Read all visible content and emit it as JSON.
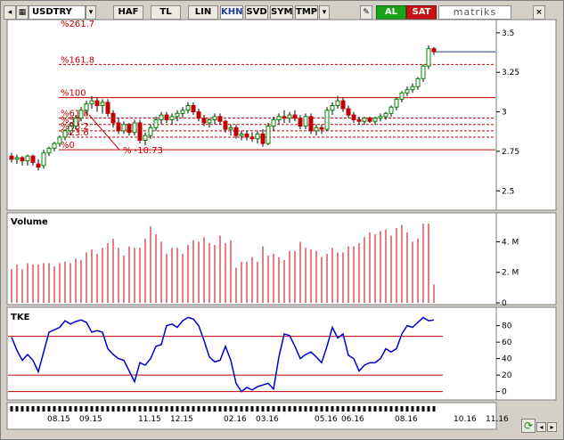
{
  "toolbar": {
    "symbol": "USDTRY",
    "buttons": [
      "HAF",
      "TL",
      "LIN",
      "KHN",
      "SVD",
      "SYM",
      "TMP"
    ],
    "active": "KHN",
    "buy_label": "AL",
    "sell_label": "SAT",
    "brand": "matriks",
    "close_glyph": "×"
  },
  "colors": {
    "up": "#008000",
    "down": "#c00000",
    "fib": "#c00000",
    "tke_line": "#0000cc",
    "tke_level": "#c00000",
    "volume": "#c00000"
  },
  "icons": [
    "back-icon",
    "settings-icon",
    "refresh-icon",
    "scroll-left-icon",
    "scroll-right-icon",
    "edit-icon"
  ],
  "chart_data": {
    "type": "candlestick",
    "price": {
      "ylim": [
        2.4,
        3.55
      ],
      "ticks": [
        2.5,
        2.75,
        3,
        3.25,
        3.5
      ],
      "tick_labels": [
        "2.5",
        "2.75",
        "3",
        "3.25",
        "3.5"
      ],
      "last": 3.38,
      "candles": [
        [
          2.72,
          2.74,
          2.68,
          2.7
        ],
        [
          2.7,
          2.73,
          2.67,
          2.71
        ],
        [
          2.71,
          2.72,
          2.66,
          2.69
        ],
        [
          2.69,
          2.73,
          2.66,
          2.72
        ],
        [
          2.72,
          2.73,
          2.66,
          2.68
        ],
        [
          2.67,
          2.7,
          2.63,
          2.65
        ],
        [
          2.66,
          2.76,
          2.64,
          2.74
        ],
        [
          2.74,
          2.78,
          2.72,
          2.77
        ],
        [
          2.77,
          2.81,
          2.75,
          2.8
        ],
        [
          2.8,
          2.85,
          2.78,
          2.84
        ],
        [
          2.84,
          2.89,
          2.82,
          2.88
        ],
        [
          2.88,
          2.93,
          2.85,
          2.91
        ],
        [
          2.91,
          2.98,
          2.89,
          2.96
        ],
        [
          2.96,
          3.03,
          2.94,
          3.01
        ],
        [
          3.01,
          3.07,
          2.98,
          3.05
        ],
        [
          3.05,
          3.1,
          3.02,
          3.07
        ],
        [
          3.07,
          3.09,
          3.0,
          3.04
        ],
        [
          3.04,
          3.08,
          2.99,
          3.06
        ],
        [
          3.06,
          3.08,
          2.97,
          2.99
        ],
        [
          2.99,
          3.01,
          2.9,
          2.93
        ],
        [
          2.93,
          2.96,
          2.86,
          2.88
        ],
        [
          2.88,
          2.94,
          2.86,
          2.92
        ],
        [
          2.92,
          2.93,
          2.85,
          2.87
        ],
        [
          2.87,
          2.95,
          2.85,
          2.93
        ],
        [
          2.93,
          2.95,
          2.8,
          2.82
        ],
        [
          2.82,
          2.87,
          2.79,
          2.85
        ],
        [
          2.85,
          2.92,
          2.83,
          2.9
        ],
        [
          2.9,
          2.97,
          2.88,
          2.95
        ],
        [
          2.95,
          3.0,
          2.92,
          2.98
        ],
        [
          2.98,
          3.0,
          2.93,
          2.95
        ],
        [
          2.95,
          2.99,
          2.92,
          2.97
        ],
        [
          2.97,
          3.01,
          2.94,
          2.99
        ],
        [
          2.99,
          3.03,
          2.96,
          3.01
        ],
        [
          3.01,
          3.06,
          2.99,
          3.04
        ],
        [
          3.04,
          3.06,
          2.98,
          3.0
        ],
        [
          3.0,
          3.02,
          2.94,
          2.96
        ],
        [
          2.96,
          2.98,
          2.91,
          2.93
        ],
        [
          2.93,
          2.96,
          2.9,
          2.95
        ],
        [
          2.95,
          2.99,
          2.92,
          2.97
        ],
        [
          2.97,
          2.99,
          2.92,
          2.94
        ],
        [
          2.94,
          2.95,
          2.87,
          2.89
        ],
        [
          2.89,
          2.92,
          2.85,
          2.9
        ],
        [
          2.9,
          2.92,
          2.83,
          2.85
        ],
        [
          2.85,
          2.88,
          2.82,
          2.86
        ],
        [
          2.86,
          2.88,
          2.82,
          2.84
        ],
        [
          2.84,
          2.87,
          2.81,
          2.83
        ],
        [
          2.83,
          2.88,
          2.8,
          2.86
        ],
        [
          2.86,
          2.89,
          2.78,
          2.8
        ],
        [
          2.8,
          2.93,
          2.79,
          2.91
        ],
        [
          2.91,
          2.97,
          2.88,
          2.95
        ],
        [
          2.95,
          2.99,
          2.92,
          2.97
        ],
        [
          2.97,
          3.01,
          2.93,
          2.96
        ],
        [
          2.96,
          3.0,
          2.93,
          2.98
        ],
        [
          2.98,
          3.01,
          2.94,
          2.96
        ],
        [
          2.96,
          2.98,
          2.89,
          2.91
        ],
        [
          2.91,
          2.99,
          2.89,
          2.97
        ],
        [
          2.97,
          2.99,
          2.86,
          2.88
        ],
        [
          2.88,
          2.92,
          2.85,
          2.9
        ],
        [
          2.9,
          2.92,
          2.86,
          2.89
        ],
        [
          2.89,
          3.03,
          2.88,
          3.01
        ],
        [
          3.01,
          3.06,
          2.98,
          3.04
        ],
        [
          3.04,
          3.1,
          3.02,
          3.07
        ],
        [
          3.07,
          3.09,
          3.0,
          3.02
        ],
        [
          3.02,
          3.04,
          2.96,
          2.98
        ],
        [
          2.98,
          3.0,
          2.93,
          2.95
        ],
        [
          2.95,
          2.97,
          2.92,
          2.94
        ],
        [
          2.94,
          2.97,
          2.92,
          2.96
        ],
        [
          2.96,
          2.97,
          2.93,
          2.94
        ],
        [
          2.94,
          2.97,
          2.92,
          2.96
        ],
        [
          2.96,
          2.99,
          2.94,
          2.97
        ],
        [
          2.97,
          3.0,
          2.95,
          2.99
        ],
        [
          2.99,
          3.04,
          2.97,
          3.03
        ],
        [
          3.03,
          3.09,
          3.01,
          3.08
        ],
        [
          3.08,
          3.13,
          3.06,
          3.12
        ],
        [
          3.12,
          3.16,
          3.1,
          3.14
        ],
        [
          3.14,
          3.18,
          3.12,
          3.16
        ],
        [
          3.16,
          3.22,
          3.14,
          3.21
        ],
        [
          3.21,
          3.3,
          3.19,
          3.29
        ],
        [
          3.29,
          3.42,
          3.27,
          3.4
        ],
        [
          3.4,
          3.41,
          3.36,
          3.38
        ]
      ]
    },
    "fibonacci": {
      "labels": [
        "%261.7",
        "%161.8",
        "%100",
        "%61.8",
        "%50",
        "%38.2",
        "%23.6",
        "%0",
        "% -10.73"
      ],
      "levels": [
        3.62,
        3.3,
        3.09,
        2.96,
        2.92,
        2.88,
        2.84,
        2.76,
        2.72
      ]
    },
    "volume": {
      "title": "Volume",
      "ylim": [
        0,
        5.6
      ],
      "ticks": [
        0,
        2,
        4
      ],
      "tick_labels": [
        "0",
        "2. M",
        "4. M"
      ],
      "values": [
        2.2,
        2.5,
        2.2,
        2.6,
        2.5,
        2.5,
        2.6,
        2.6,
        2.4,
        2.6,
        2.7,
        2.6,
        2.9,
        2.8,
        3.3,
        3.5,
        3.2,
        3.6,
        3.9,
        4.2,
        3.6,
        3.1,
        3.7,
        3.6,
        3.6,
        4.2,
        5.0,
        4.5,
        4.0,
        3.2,
        3.6,
        3.6,
        3.2,
        3.8,
        4.1,
        4.0,
        4.3,
        3.9,
        3.8,
        4.4,
        3.9,
        4.1,
        2.3,
        2.7,
        2.7,
        3.0,
        2.7,
        3.7,
        3.1,
        3.2,
        3.0,
        2.8,
        3.4,
        3.4,
        4.0,
        3.6,
        3.5,
        3.4,
        3.0,
        3.2,
        3.6,
        3.3,
        3.3,
        3.7,
        3.7,
        3.9,
        4.3,
        4.6,
        4.5,
        4.7,
        4.8,
        4.4,
        4.9,
        5.1,
        4.6,
        4.0,
        4.2,
        5.2,
        5.2,
        1.2
      ]
    },
    "tke": {
      "title": "TKE",
      "ylim": [
        -8,
        98
      ],
      "ticks": [
        0,
        20,
        40,
        60,
        80
      ],
      "tick_labels": [
        "0",
        "20",
        "40",
        "60",
        "80"
      ],
      "levels": [
        67,
        20,
        0
      ],
      "values": [
        66,
        50,
        38,
        45,
        38,
        24,
        48,
        72,
        75,
        78,
        86,
        82,
        85,
        87,
        84,
        72,
        74,
        72,
        52,
        45,
        40,
        38,
        25,
        12,
        35,
        32,
        40,
        55,
        57,
        80,
        82,
        78,
        86,
        90,
        88,
        80,
        62,
        42,
        36,
        38,
        55,
        38,
        10,
        0,
        5,
        2,
        6,
        8,
        10,
        3,
        42,
        70,
        68,
        55,
        40,
        45,
        48,
        42,
        35,
        55,
        78,
        65,
        70,
        44,
        40,
        25,
        32,
        35,
        35,
        40,
        52,
        48,
        52,
        70,
        80,
        78,
        84,
        90,
        86,
        87
      ]
    },
    "x_labels": [
      "08.15",
      "09.15",
      "11.15",
      "12.15",
      "02.16",
      "03.16",
      "05.16",
      "06.16",
      "08.16",
      "10.16",
      "11.16"
    ],
    "x_label_index": [
      7,
      13,
      24,
      30,
      40,
      46,
      57,
      62,
      72,
      83,
      89
    ]
  }
}
